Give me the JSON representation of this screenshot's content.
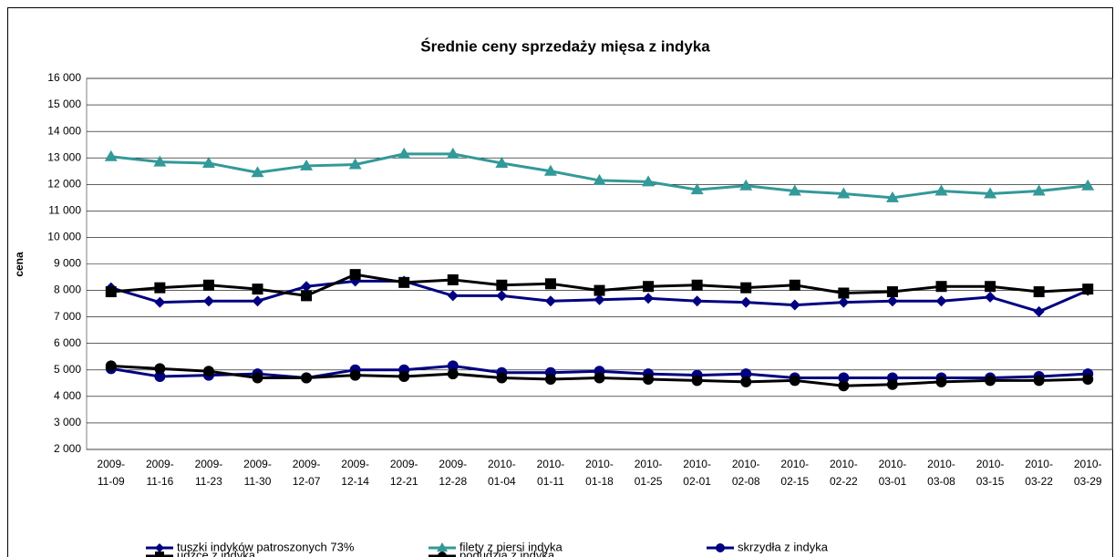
{
  "chart_data": {
    "type": "line",
    "title": "Średnie ceny sprzedaży mięsa z indyka",
    "y_label": "cena",
    "categories": [
      "2009-11-09",
      "2009-11-16",
      "2009-11-23",
      "2009-11-30",
      "2009-12-07",
      "2009-12-14",
      "2009-12-21",
      "2009-12-28",
      "2010-01-04",
      "2010-01-11",
      "2010-01-18",
      "2010-01-25",
      "2010-02-01",
      "2010-02-08",
      "2010-02-15",
      "2010-02-22",
      "2010-03-01",
      "2010-03-08",
      "2010-03-15",
      "2010-03-22",
      "2010-03-29"
    ],
    "ylim": [
      2000,
      16000
    ],
    "yticks": [
      {
        "value": 2000,
        "label": "2 000"
      },
      {
        "value": 3000,
        "label": "3 000"
      },
      {
        "value": 4000,
        "label": "4 000"
      },
      {
        "value": 5000,
        "label": "5 000"
      },
      {
        "value": 6000,
        "label": "6 000"
      },
      {
        "value": 7000,
        "label": "7 000"
      },
      {
        "value": 8000,
        "label": "8 000"
      },
      {
        "value": 9000,
        "label": "9 000"
      },
      {
        "value": 10000,
        "label": "10 000"
      },
      {
        "value": 11000,
        "label": "11 000"
      },
      {
        "value": 12000,
        "label": "12 000"
      },
      {
        "value": 13000,
        "label": "13 000"
      },
      {
        "value": 14000,
        "label": "14 000"
      },
      {
        "value": 15000,
        "label": "15 000"
      },
      {
        "value": 16000,
        "label": "16 000"
      }
    ],
    "grid": true,
    "legend": "bottom",
    "series": [
      {
        "name": "tuszki indyków  patroszonych 73%",
        "color": "#000080",
        "marker": "diamond",
        "values": [
          8100,
          7550,
          7600,
          7600,
          8150,
          8350,
          8350,
          7800,
          7800,
          7600,
          7650,
          7700,
          7600,
          7550,
          7450,
          7550,
          7600,
          7600,
          7750,
          7200,
          8000
        ]
      },
      {
        "name": "filety z piersi indyka",
        "color": "#339999",
        "marker": "triangle",
        "values": [
          13050,
          12850,
          12800,
          12450,
          12700,
          12750,
          13150,
          13150,
          12800,
          12500,
          12150,
          12100,
          11800,
          11950,
          11750,
          11650,
          11500,
          11750,
          11650,
          11750,
          11950
        ]
      },
      {
        "name": "skrzydła z indyka",
        "color": "#000080",
        "marker": "circle",
        "values": [
          5050,
          4750,
          4800,
          4850,
          4700,
          5000,
          5000,
          5150,
          4900,
          4900,
          4950,
          4850,
          4800,
          4850,
          4700,
          4700,
          4700,
          4700,
          4700,
          4750,
          4850
        ]
      },
      {
        "name": "udźce z indyka",
        "color": "#000000",
        "marker": "square",
        "values": [
          7950,
          8100,
          8200,
          8050,
          7800,
          8600,
          8300,
          8400,
          8200,
          8250,
          8000,
          8150,
          8200,
          8100,
          8200,
          7900,
          7950,
          8150,
          8150,
          7950,
          8050
        ]
      },
      {
        "name": "podudzia z indyka",
        "color": "#000000",
        "marker": "circle",
        "values": [
          5150,
          5050,
          4950,
          4700,
          4700,
          4800,
          4750,
          4850,
          4700,
          4650,
          4700,
          4650,
          4600,
          4550,
          4600,
          4400,
          4450,
          4550,
          4600,
          4600,
          4650
        ]
      }
    ]
  }
}
